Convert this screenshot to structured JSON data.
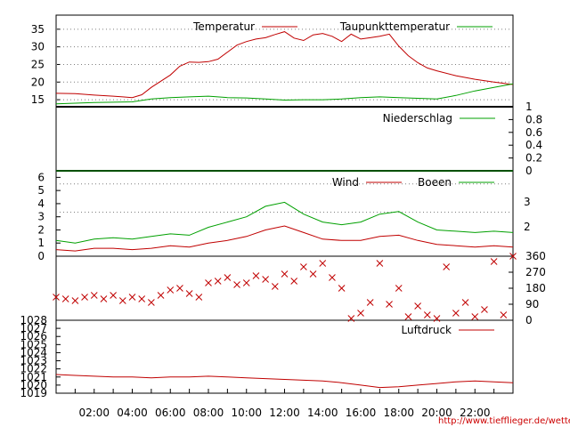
{
  "colors": {
    "red": "#c00000",
    "green": "#00a000",
    "grid": "#7f7f7f",
    "axis": "#000000"
  },
  "x_ticks": [
    "02:00",
    "04:00",
    "06:00",
    "08:00",
    "10:00",
    "12:00",
    "14:00",
    "16:00",
    "18:00",
    "20:00",
    "22:00"
  ],
  "source_url": "http://www.tiefflieger.de/wetter/",
  "chart_data": [
    {
      "type": "line",
      "panel": "temperature",
      "y_ticks": [
        "15",
        "20",
        "25",
        "30",
        "35"
      ],
      "ylim": [
        13,
        39
      ],
      "grid": true,
      "legend_position": "top",
      "series": [
        {
          "name": "Temperatur",
          "color": "#c00000",
          "x": [
            0,
            1,
            2,
            3,
            3.5,
            4,
            4.5,
            5,
            6,
            6.5,
            7,
            7.5,
            8,
            8.5,
            9,
            9.5,
            10,
            10.5,
            11,
            11.5,
            12,
            12.5,
            13,
            13.5,
            14,
            14.5,
            15,
            15.5,
            16,
            16.5,
            17,
            17.5,
            18,
            18.5,
            19,
            19.5,
            20,
            21,
            22,
            23,
            24
          ],
          "y": [
            16.8,
            16.7,
            16.3,
            16.0,
            15.8,
            15.6,
            16.4,
            18.5,
            22,
            24.5,
            25.7,
            25.6,
            25.8,
            26.5,
            28.5,
            30.5,
            31.5,
            32.2,
            32.6,
            33.5,
            34.3,
            32.5,
            31.8,
            33.4,
            33.8,
            33.0,
            31.5,
            33.6,
            32.2,
            32.6,
            33.0,
            33.6,
            30.2,
            27.5,
            25.5,
            24,
            23.2,
            21.8,
            20.8,
            20.0,
            19.3
          ]
        },
        {
          "name": "Taupunkttemperatur",
          "color": "#00a000",
          "x": [
            0,
            2,
            4,
            5,
            6,
            7,
            8,
            9,
            10,
            11,
            12,
            13,
            14,
            15,
            16,
            17,
            18,
            19,
            20,
            21,
            22,
            23,
            24
          ],
          "y": [
            13.8,
            14.2,
            14.4,
            15.2,
            15.6,
            15.8,
            16,
            15.6,
            15.5,
            15.2,
            14.9,
            15,
            15,
            15.2,
            15.6,
            15.8,
            15.6,
            15.4,
            15.2,
            16.2,
            17.5,
            18.5,
            19.5
          ]
        }
      ]
    },
    {
      "type": "line",
      "panel": "precipitation",
      "y_ticks": [
        "0",
        "0.2",
        "0.4",
        "0.6",
        "0.8",
        "1"
      ],
      "ylim": [
        0,
        1
      ],
      "legend_position": "top",
      "series": [
        {
          "name": "Niederschlag",
          "color": "#00a000",
          "x": [
            0,
            24
          ],
          "y": [
            0,
            0
          ]
        }
      ]
    },
    {
      "type": "line",
      "panel": "wind",
      "y_ticks": [
        "0",
        "1",
        "2",
        "3",
        "4",
        "5",
        "6"
      ],
      "y_ticks_right": [
        "2",
        "3"
      ],
      "ylim": [
        0,
        6.5
      ],
      "legend_position": "top",
      "series": [
        {
          "name": "Wind",
          "color": "#c00000",
          "x": [
            0,
            1,
            2,
            3,
            4,
            5,
            6,
            7,
            8,
            9,
            10,
            11,
            12,
            13,
            14,
            15,
            16,
            17,
            18,
            19,
            20,
            21,
            22,
            23,
            24
          ],
          "y": [
            0.5,
            0.4,
            0.6,
            0.6,
            0.5,
            0.6,
            0.8,
            0.7,
            1.0,
            1.2,
            1.5,
            2.0,
            2.3,
            1.8,
            1.3,
            1.2,
            1.2,
            1.5,
            1.6,
            1.2,
            0.9,
            0.8,
            0.7,
            0.8,
            0.7
          ]
        },
        {
          "name": "Boeen",
          "color": "#00a000",
          "x": [
            0,
            1,
            2,
            3,
            4,
            5,
            6,
            7,
            8,
            9,
            10,
            11,
            12,
            13,
            14,
            15,
            16,
            17,
            18,
            19,
            20,
            21,
            22,
            23,
            24
          ],
          "y": [
            1.2,
            1.0,
            1.3,
            1.4,
            1.3,
            1.5,
            1.7,
            1.6,
            2.2,
            2.6,
            3.0,
            3.8,
            4.1,
            3.2,
            2.6,
            2.4,
            2.6,
            3.2,
            3.4,
            2.6,
            2.0,
            1.9,
            1.8,
            1.9,
            1.8
          ]
        }
      ]
    },
    {
      "type": "scatter",
      "panel": "wind_direction",
      "y_ticks_right": [
        "0",
        "90",
        "180",
        "270",
        "360"
      ],
      "ylim": [
        0,
        360
      ],
      "series": [
        {
          "name": "",
          "color": "#c00000",
          "marker": "x",
          "x": [
            0,
            0.5,
            1,
            1.5,
            2,
            2.5,
            3,
            3.5,
            4,
            4.5,
            5,
            5.5,
            6,
            6.5,
            7,
            7.5,
            8,
            8.5,
            9,
            9.5,
            10,
            10.5,
            11,
            11.5,
            12,
            12.5,
            13,
            13.5,
            14,
            14.5,
            15,
            15.5,
            16,
            16.5,
            17,
            17.5,
            18,
            18.5,
            19,
            19.5,
            20,
            20.5,
            21,
            21.5,
            22,
            22.5,
            23,
            23.5,
            24
          ],
          "y": [
            130,
            120,
            110,
            130,
            140,
            120,
            140,
            110,
            130,
            120,
            100,
            140,
            170,
            180,
            150,
            130,
            210,
            220,
            240,
            200,
            210,
            250,
            230,
            190,
            260,
            220,
            300,
            260,
            320,
            240,
            180,
            10,
            40,
            100,
            320,
            90,
            180,
            20,
            80,
            30,
            10,
            300,
            40,
            100,
            20,
            60,
            330,
            30,
            360
          ]
        }
      ]
    },
    {
      "type": "line",
      "panel": "pressure",
      "y_ticks": [
        "1019",
        "1020",
        "1021",
        "1022",
        "1023",
        "1024",
        "1025",
        "1026",
        "1027",
        "1028"
      ],
      "ylim": [
        1019,
        1028
      ],
      "legend_position": "top",
      "series": [
        {
          "name": "Luftdruck",
          "color": "#c00000",
          "x": [
            0,
            1,
            2,
            3,
            4,
            5,
            6,
            7,
            8,
            9,
            10,
            11,
            12,
            13,
            14,
            15,
            16,
            17,
            18,
            19,
            20,
            21,
            22,
            23,
            24
          ],
          "y": [
            1021.3,
            1021.2,
            1021.1,
            1021.0,
            1021.0,
            1020.9,
            1021.0,
            1021.0,
            1021.1,
            1021.0,
            1020.9,
            1020.8,
            1020.7,
            1020.6,
            1020.5,
            1020.3,
            1020.0,
            1019.7,
            1019.8,
            1020.0,
            1020.2,
            1020.4,
            1020.5,
            1020.4,
            1020.3
          ]
        }
      ]
    }
  ]
}
